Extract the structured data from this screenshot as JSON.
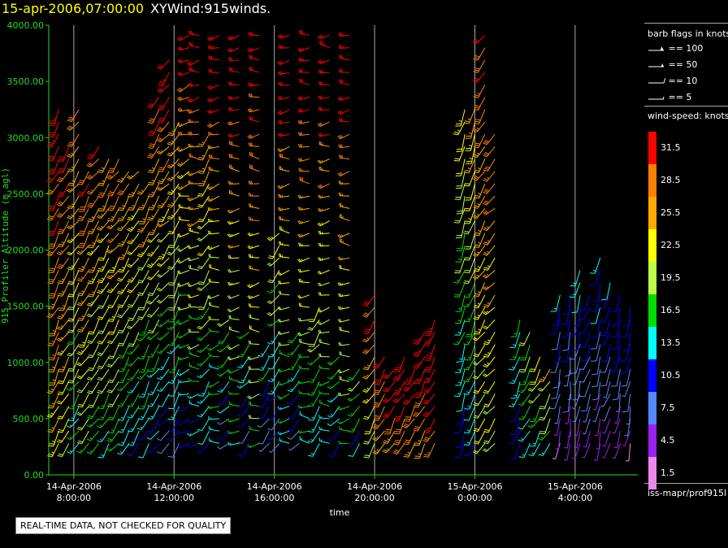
{
  "header": {
    "date": "15-apr-2006,07:00:00",
    "product": "XYWind:915winds."
  },
  "chart_data": {
    "type": "wind-barb time-height",
    "xlabel": "time",
    "ylabel": "915 Profiler Altitude (m agl)",
    "ylim": [
      0,
      4000
    ],
    "xlim_hours": [
      7.0,
      30.5
    ],
    "x_ticks": [
      {
        "hours": 8,
        "date": "14-Apr-2006",
        "time": "8:00:00"
      },
      {
        "hours": 12,
        "date": "14-Apr-2006",
        "time": "12:00:00"
      },
      {
        "hours": 16,
        "date": "14-Apr-2006",
        "time": "16:00:00"
      },
      {
        "hours": 20,
        "date": "14-Apr-2006",
        "time": "20:00:00"
      },
      {
        "hours": 24,
        "date": "15-Apr-2006",
        "time": "0:00:00"
      },
      {
        "hours": 28,
        "date": "15-Apr-2006",
        "time": "4:00:00"
      }
    ],
    "y_ticks": [
      "0.00",
      "500.00",
      "1000.00",
      "1500.00",
      "2000.00",
      "2500.00",
      "3000.00",
      "3500.00",
      "4000.00"
    ],
    "y_tick_values": [
      0,
      500,
      1000,
      1500,
      2000,
      2500,
      3000,
      3500,
      4000
    ],
    "grid": "vertical lines at tick times",
    "observations": [
      {
        "hours": 7.4,
        "top": 3300,
        "speed_low": 24,
        "speed_high": 33,
        "dir_deg": 220
      },
      {
        "hours": 7.8,
        "top": 3000,
        "speed_low": 20,
        "speed_high": 32,
        "dir_deg": 225
      },
      {
        "hours": 8.2,
        "top": 3300,
        "speed_low": 14,
        "speed_high": 30,
        "dir_deg": 230
      },
      {
        "hours": 8.6,
        "top": 2800,
        "speed_low": 18,
        "speed_high": 31,
        "dir_deg": 225
      },
      {
        "hours": 9.0,
        "top": 3000,
        "speed_low": 16,
        "speed_high": 30,
        "dir_deg": 230
      },
      {
        "hours": 9.4,
        "top": 2900,
        "speed_low": 15,
        "speed_high": 28,
        "dir_deg": 225
      },
      {
        "hours": 9.8,
        "top": 2900,
        "speed_low": 16,
        "speed_high": 30,
        "dir_deg": 230
      },
      {
        "hours": 10.2,
        "top": 2800,
        "speed_low": 14,
        "speed_high": 28,
        "dir_deg": 225
      },
      {
        "hours": 10.6,
        "top": 2700,
        "speed_low": 12,
        "speed_high": 27,
        "dir_deg": 230
      },
      {
        "hours": 11.0,
        "top": 2600,
        "speed_low": 12,
        "speed_high": 26,
        "dir_deg": 225
      },
      {
        "hours": 11.4,
        "top": 3400,
        "speed_low": 10,
        "speed_high": 32,
        "dir_deg": 230
      },
      {
        "hours": 11.8,
        "top": 3700,
        "speed_low": 9,
        "speed_high": 33,
        "dir_deg": 235
      },
      {
        "hours": 12.2,
        "top": 3200,
        "speed_low": 10,
        "speed_high": 28,
        "dir_deg": 225
      },
      {
        "hours": 12.6,
        "top": 4000,
        "speed_low": 10,
        "speed_high": 33,
        "dir_deg": 260
      },
      {
        "hours": 13.0,
        "top": 4000,
        "speed_low": 12,
        "speed_high": 34,
        "dir_deg": 265
      },
      {
        "hours": 13.4,
        "top": 3100,
        "speed_low": 12,
        "speed_high": 26,
        "dir_deg": 230
      },
      {
        "hours": 13.8,
        "top": 4000,
        "speed_low": 12,
        "speed_high": 34,
        "dir_deg": 265
      },
      {
        "hours": 14.2,
        "top": 1400,
        "speed_low": 8,
        "speed_high": 18,
        "dir_deg": 240
      },
      {
        "hours": 14.6,
        "top": 4000,
        "speed_low": 14,
        "speed_high": 34,
        "dir_deg": 268
      },
      {
        "hours": 15.0,
        "top": 1300,
        "speed_low": 8,
        "speed_high": 16,
        "dir_deg": 235
      },
      {
        "hours": 15.4,
        "top": 4000,
        "speed_low": 16,
        "speed_high": 34,
        "dir_deg": 268
      },
      {
        "hours": 15.8,
        "top": 1200,
        "speed_low": 8,
        "speed_high": 16,
        "dir_deg": 230
      },
      {
        "hours": 16.2,
        "top": 2200,
        "speed_low": 8,
        "speed_high": 22,
        "dir_deg": 235
      },
      {
        "hours": 16.6,
        "top": 4000,
        "speed_low": 14,
        "speed_high": 34,
        "dir_deg": 268
      },
      {
        "hours": 17.0,
        "top": 1300,
        "speed_low": 8,
        "speed_high": 18,
        "dir_deg": 235
      },
      {
        "hours": 17.4,
        "top": 4000,
        "speed_low": 14,
        "speed_high": 34,
        "dir_deg": 268
      },
      {
        "hours": 17.8,
        "top": 1500,
        "speed_low": 12,
        "speed_high": 22,
        "dir_deg": 230
      },
      {
        "hours": 18.2,
        "top": 4000,
        "speed_low": 14,
        "speed_high": 34,
        "dir_deg": 268
      },
      {
        "hours": 18.6,
        "top": 1100,
        "speed_low": 10,
        "speed_high": 18,
        "dir_deg": 235
      },
      {
        "hours": 19.0,
        "top": 4000,
        "speed_low": 16,
        "speed_high": 34,
        "dir_deg": 268
      },
      {
        "hours": 19.4,
        "top": 1000,
        "speed_low": 12,
        "speed_high": 20,
        "dir_deg": 235
      },
      {
        "hours": 20.0,
        "top": 1600,
        "speed_low": 18,
        "speed_high": 32,
        "dir_deg": 225
      },
      {
        "hours": 20.4,
        "top": 1100,
        "speed_low": 26,
        "speed_high": 33,
        "dir_deg": 225
      },
      {
        "hours": 20.8,
        "top": 1000,
        "speed_low": 26,
        "speed_high": 33,
        "dir_deg": 225
      },
      {
        "hours": 21.2,
        "top": 1100,
        "speed_low": 28,
        "speed_high": 34,
        "dir_deg": 225
      },
      {
        "hours": 21.6,
        "top": 1000,
        "speed_low": 28,
        "speed_high": 34,
        "dir_deg": 225
      },
      {
        "hours": 22.0,
        "top": 1300,
        "speed_low": 26,
        "speed_high": 34,
        "dir_deg": 222
      },
      {
        "hours": 22.4,
        "top": 1400,
        "speed_low": 28,
        "speed_high": 34,
        "dir_deg": 222
      },
      {
        "hours": 23.6,
        "top": 3300,
        "speed_low": 10,
        "speed_high": 24,
        "dir_deg": 210
      },
      {
        "hours": 24.0,
        "top": 3300,
        "speed_low": 12,
        "speed_high": 26,
        "dir_deg": 215
      },
      {
        "hours": 24.4,
        "top": 4000,
        "speed_low": 20,
        "speed_high": 30,
        "dir_deg": 230
      },
      {
        "hours": 24.8,
        "top": 3100,
        "speed_low": 20,
        "speed_high": 29,
        "dir_deg": 235
      },
      {
        "hours": 25.8,
        "top": 1400,
        "speed_low": 10,
        "speed_high": 16,
        "dir_deg": 215
      },
      {
        "hours": 26.2,
        "top": 1300,
        "speed_low": 12,
        "speed_high": 20,
        "dir_deg": 220
      },
      {
        "hours": 26.6,
        "top": 1100,
        "speed_low": 14,
        "speed_high": 22,
        "dir_deg": 225
      },
      {
        "hours": 27.0,
        "top": 1000,
        "speed_low": 14,
        "speed_high": 24,
        "dir_deg": 225
      },
      {
        "hours": 27.4,
        "top": 1600,
        "speed_low": 4,
        "speed_high": 12,
        "dir_deg": 200
      },
      {
        "hours": 27.8,
        "top": 1700,
        "speed_low": 4,
        "speed_high": 12,
        "dir_deg": 190
      },
      {
        "hours": 28.2,
        "top": 1900,
        "speed_low": 4,
        "speed_high": 14,
        "dir_deg": 200
      },
      {
        "hours": 28.6,
        "top": 1600,
        "speed_low": 4,
        "speed_high": 12,
        "dir_deg": 210
      },
      {
        "hours": 29.0,
        "top": 2000,
        "speed_low": 4,
        "speed_high": 14,
        "dir_deg": 200
      },
      {
        "hours": 29.4,
        "top": 1800,
        "speed_low": 4,
        "speed_high": 14,
        "dir_deg": 210
      },
      {
        "hours": 29.8,
        "top": 1700,
        "speed_low": 4,
        "speed_high": 12,
        "dir_deg": 200
      },
      {
        "hours": 30.2,
        "top": 1500,
        "speed_low": 4,
        "speed_high": 12,
        "dir_deg": 200
      }
    ]
  },
  "legend": {
    "flags_title": "barb flags in knots",
    "flags": [
      {
        "label": "== 100",
        "icon": "pennant-100"
      },
      {
        "label": "== 50",
        "icon": "pennant-50"
      },
      {
        "label": "== 10",
        "icon": "full-barb-10"
      },
      {
        "label": "== 5",
        "icon": "half-barb-5"
      }
    ],
    "speed_title": "wind-speed: knots",
    "colorbar": [
      {
        "label": "31.5",
        "color": "#ff0000"
      },
      {
        "label": "28.5",
        "color": "#ff8000"
      },
      {
        "label": "25.5",
        "color": "#ffaa00"
      },
      {
        "label": "22.5",
        "color": "#ffff00"
      },
      {
        "label": "19.5",
        "color": "#bbff44"
      },
      {
        "label": "16.5",
        "color": "#00dd00"
      },
      {
        "label": "13.5",
        "color": "#00ffff"
      },
      {
        "label": "10.5",
        "color": "#0000ff"
      },
      {
        "label": "7.5",
        "color": "#5588ff"
      },
      {
        "label": "4.5",
        "color": "#9922ee"
      },
      {
        "label": "1.5",
        "color": "#ee88ee"
      }
    ]
  },
  "footer": {
    "source_file": "iss-mapr/prof915l",
    "notice": "REAL-TIME DATA, NOT CHECKED FOR QUALITY"
  },
  "colors": {
    "background": "#000000",
    "axis": "#22dd22",
    "title_date": "#ffff00",
    "grid": "#aaaaaa"
  }
}
